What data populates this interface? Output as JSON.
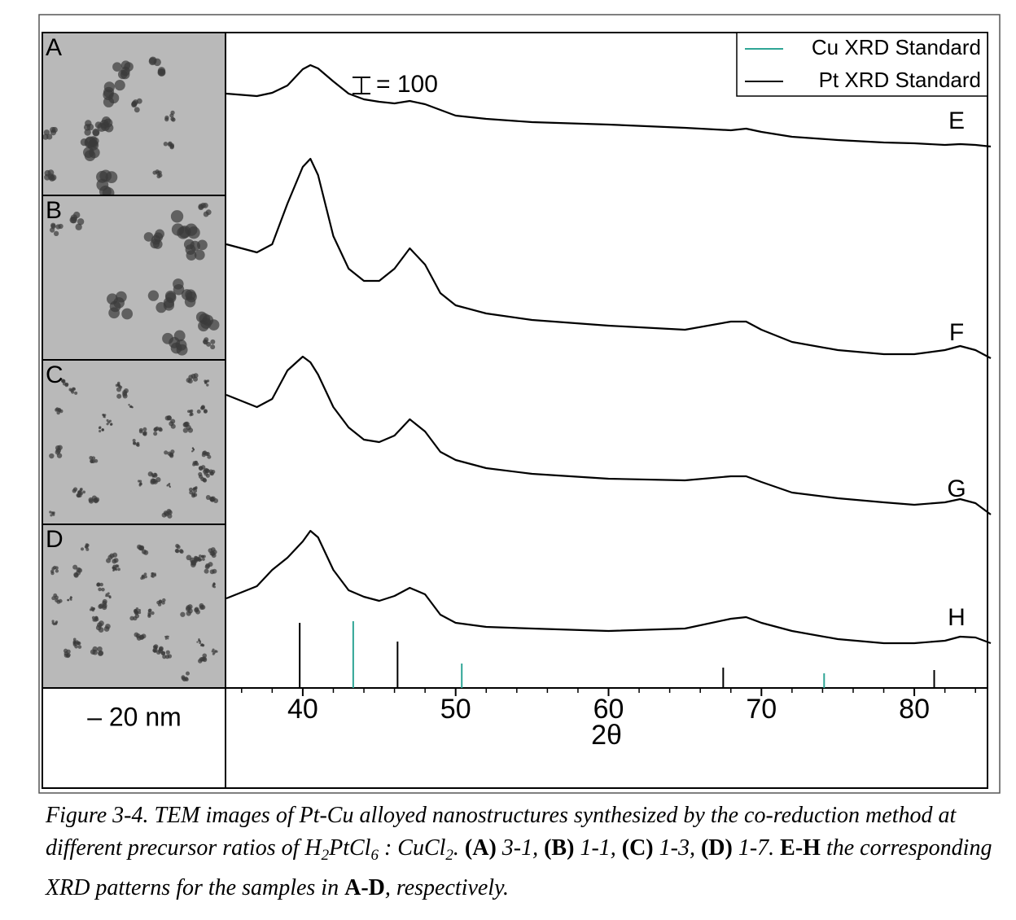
{
  "panels": {
    "labels": [
      "A",
      "B",
      "C",
      "D"
    ],
    "scale_text": "– 20 nm"
  },
  "chart_data": {
    "type": "line",
    "x_label": "2θ",
    "xlim": [
      35,
      85
    ],
    "xticks": [
      40,
      50,
      60,
      70,
      80
    ],
    "minor_xticks": [
      36,
      38,
      42,
      44,
      46,
      48,
      52,
      54,
      56,
      58,
      62,
      64,
      66,
      68,
      72,
      74,
      76,
      78,
      82,
      84
    ],
    "ylim": [
      0,
      4000
    ],
    "scale_bar": {
      "value": 100,
      "label": "= 100"
    },
    "x": [
      35,
      37,
      38,
      39,
      40,
      40.5,
      41,
      42,
      43,
      44,
      45,
      46,
      47,
      48,
      49,
      50,
      52,
      55,
      60,
      65,
      68,
      69,
      70,
      72,
      75,
      78,
      80,
      82,
      83,
      84,
      85
    ],
    "series": [
      {
        "name": "E",
        "color": "#000000",
        "values": [
          3650,
          3635,
          3655,
          3700,
          3800,
          3825,
          3805,
          3725,
          3650,
          3615,
          3600,
          3590,
          3605,
          3585,
          3550,
          3515,
          3495,
          3475,
          3460,
          3440,
          3425,
          3435,
          3415,
          3385,
          3365,
          3350,
          3345,
          3335,
          3340,
          3335,
          3325
        ]
      },
      {
        "name": "F",
        "color": "#000000",
        "values": [
          2725,
          2675,
          2725,
          2975,
          3200,
          3250,
          3150,
          2775,
          2575,
          2500,
          2500,
          2575,
          2700,
          2600,
          2425,
          2350,
          2300,
          2260,
          2225,
          2200,
          2250,
          2250,
          2200,
          2125,
          2075,
          2050,
          2050,
          2075,
          2100,
          2075,
          2025
        ]
      },
      {
        "name": "G",
        "color": "#000000",
        "values": [
          1800,
          1725,
          1775,
          1950,
          2035,
          2000,
          1925,
          1725,
          1600,
          1525,
          1510,
          1550,
          1650,
          1575,
          1450,
          1400,
          1350,
          1315,
          1285,
          1275,
          1300,
          1300,
          1265,
          1200,
          1165,
          1140,
          1125,
          1140,
          1160,
          1135,
          1065
        ]
      },
      {
        "name": "H",
        "color": "#000000",
        "values": [
          550,
          625,
          725,
          800,
          900,
          965,
          925,
          725,
          600,
          560,
          535,
          565,
          615,
          575,
          450,
          400,
          375,
          365,
          350,
          365,
          425,
          435,
          400,
          350,
          300,
          275,
          275,
          290,
          315,
          310,
          275
        ]
      }
    ],
    "standards": [
      {
        "name": "Cu XRD Standard",
        "color": "#2fa595",
        "x": [
          43.3,
          50.4,
          74.1
        ],
        "values": [
          410,
          150,
          90
        ]
      },
      {
        "name": "Pt XRD Standard",
        "color": "#000000",
        "x": [
          39.8,
          46.2,
          67.5,
          81.3
        ],
        "values": [
          400,
          285,
          125,
          110
        ]
      }
    ]
  },
  "caption": [
    {
      "text": "Figure 3-4. TEM images of Pt-Cu alloyed nanostructures synthesized by the co-reduction method at different precursor ratios of H",
      "style": "i"
    },
    {
      "text": "2",
      "style": "sub"
    },
    {
      "text": "PtCl",
      "style": "i"
    },
    {
      "text": "6",
      "style": "sub"
    },
    {
      "text": " : CuCl",
      "style": "i"
    },
    {
      "text": "2",
      "style": "sub"
    },
    {
      "text": ". ",
      "style": "i"
    },
    {
      "text": "(A)",
      "style": "b"
    },
    {
      "text": " 3-1, ",
      "style": "i"
    },
    {
      "text": "(B)",
      "style": "b"
    },
    {
      "text": " 1-1, ",
      "style": "i"
    },
    {
      "text": "(C)",
      "style": "b"
    },
    {
      "text": " 1-3, ",
      "style": "i"
    },
    {
      "text": "(D)",
      "style": "b"
    },
    {
      "text": " 1-7. ",
      "style": "i"
    },
    {
      "text": "E-H",
      "style": "b"
    },
    {
      "text": " the corresponding XRD patterns for the samples in ",
      "style": "i"
    },
    {
      "text": "A-D",
      "style": "b"
    },
    {
      "text": ", respectively.",
      "style": "i"
    }
  ]
}
